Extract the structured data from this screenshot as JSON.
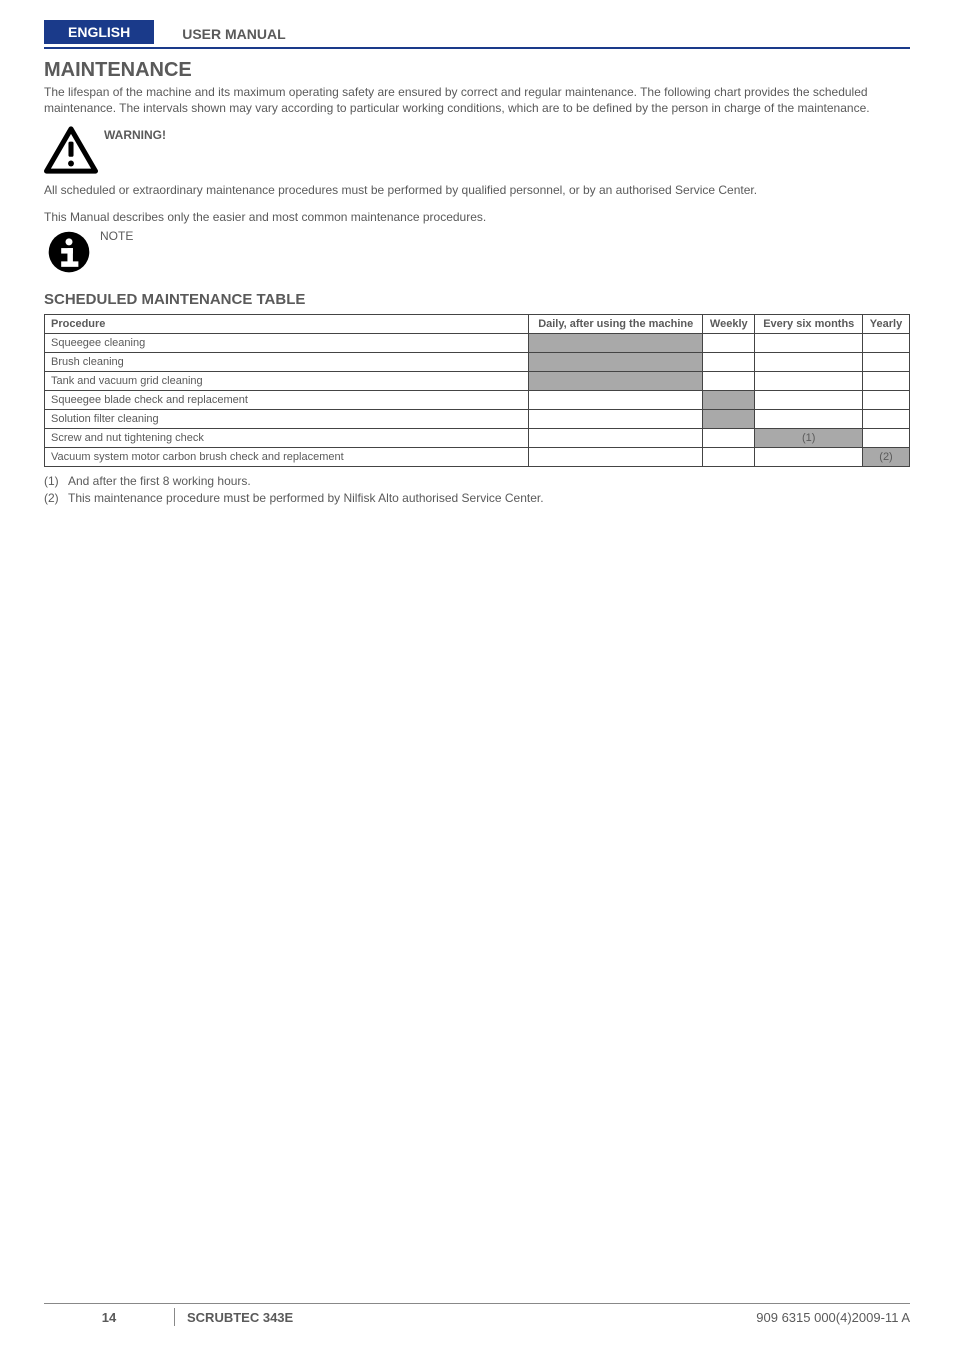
{
  "header": {
    "language": "ENGLISH",
    "manual_type": "USER MANUAL"
  },
  "title": "MAINTENANCE",
  "intro": "The lifespan of the machine and its maximum operating safety are ensured by correct and regular maintenance.\nThe following chart provides the scheduled maintenance. The intervals shown may vary according to particular working conditions, which are to be defined by the person in charge of the maintenance.",
  "warning_label": "WARNING!",
  "warning_body": "All scheduled or extraordinary maintenance procedures must be performed by qualified personnel, or by an authorised Service Center.",
  "manual_note": "This Manual describes only the easier and most common maintenance procedures.",
  "note_label": "NOTE",
  "section_title": "SCHEDULED MAINTENANCE TABLE",
  "table": {
    "columns": [
      "Procedure",
      "Daily, after using the machine",
      "Weekly",
      "Every six months",
      "Yearly"
    ],
    "rows": [
      {
        "label": "Squeegee cleaning",
        "cells": [
          {
            "shade": true
          },
          {
            "shade": false
          },
          {
            "shade": false
          },
          {
            "shade": false
          }
        ]
      },
      {
        "label": "Brush cleaning",
        "cells": [
          {
            "shade": true
          },
          {
            "shade": false
          },
          {
            "shade": false
          },
          {
            "shade": false
          }
        ]
      },
      {
        "label": "Tank and vacuum grid cleaning",
        "cells": [
          {
            "shade": true
          },
          {
            "shade": false
          },
          {
            "shade": false
          },
          {
            "shade": false
          }
        ]
      },
      {
        "label": "Squeegee blade check and replacement",
        "cells": [
          {
            "shade": false
          },
          {
            "shade": true
          },
          {
            "shade": false
          },
          {
            "shade": false
          }
        ]
      },
      {
        "label": "Solution filter cleaning",
        "cells": [
          {
            "shade": false
          },
          {
            "shade": true
          },
          {
            "shade": false
          },
          {
            "shade": false
          }
        ]
      },
      {
        "label": "Screw and nut tightening check",
        "cells": [
          {
            "shade": false
          },
          {
            "shade": false
          },
          {
            "shade": true,
            "text": "(1)"
          },
          {
            "shade": false
          }
        ]
      },
      {
        "label": "Vacuum system motor carbon brush check and replacement",
        "cells": [
          {
            "shade": false
          },
          {
            "shade": false
          },
          {
            "shade": false
          },
          {
            "shade": true,
            "text": "(2)"
          }
        ]
      }
    ]
  },
  "footnotes": [
    {
      "num": "(1)",
      "text": "And after the first 8 working hours."
    },
    {
      "num": "(2)",
      "text": "This maintenance procedure must be performed by Nilfisk Alto authorised Service Center."
    }
  ],
  "footer": {
    "page": "14",
    "product": "SCRUBTEC 343E",
    "revision": "909 6315 000(4)2009-11 A"
  },
  "colors": {
    "brand_blue": "#1a3a8a",
    "text_gray": "#5a5a5a",
    "shade_gray": "#a9a9a9",
    "border": "#444444"
  }
}
